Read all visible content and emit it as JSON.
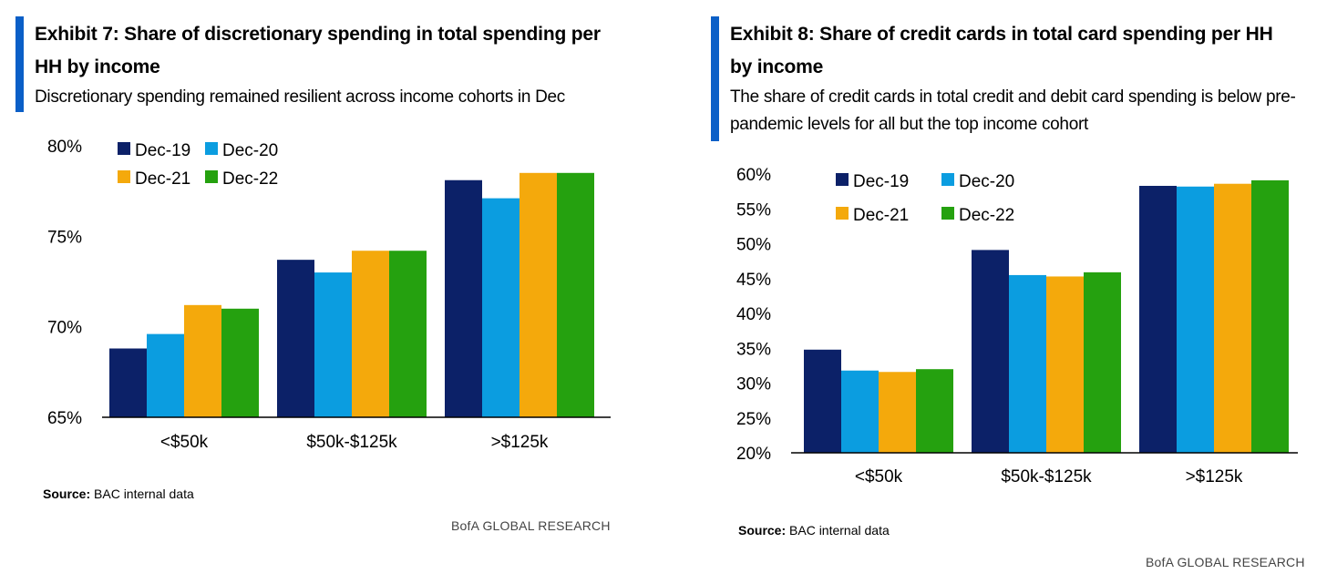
{
  "colors": {
    "accent": "#0a5fc7",
    "series": [
      "#0c2168",
      "#0b9de0",
      "#f4a90c",
      "#25a10f"
    ]
  },
  "brand": "BofA GLOBAL RESEARCH",
  "chart_data": [
    {
      "type": "bar",
      "title": "Exhibit 7: Share of discretionary spending in total spending per HH by income",
      "subtitle": "Discretionary spending remained resilient across income cohorts in Dec",
      "source_label": "Source:",
      "source_text": "BAC internal data",
      "categories": [
        "<$50k",
        "$50k-$125k",
        ">$125k"
      ],
      "series": [
        {
          "name": "Dec-19",
          "values": [
            68.8,
            73.7,
            78.1
          ]
        },
        {
          "name": "Dec-20",
          "values": [
            69.6,
            73.0,
            77.1
          ]
        },
        {
          "name": "Dec-21",
          "values": [
            71.2,
            74.2,
            78.5
          ]
        },
        {
          "name": "Dec-22",
          "values": [
            71.0,
            74.2,
            78.5
          ]
        }
      ],
      "yticks": [
        "80%",
        "75%",
        "70%",
        "65%"
      ],
      "ylim": [
        65,
        80
      ],
      "legend": "top-left",
      "grid": false
    },
    {
      "type": "bar",
      "title": "Exhibit 8: Share of credit cards in total card spending per HH by income",
      "subtitle": "The share of credit cards in total credit and debit card spending is below pre-pandemic levels for all but the top income cohort",
      "source_label": "Source:",
      "source_text": "BAC internal data",
      "categories": [
        "<$50k",
        "$50k-$125k",
        ">$125k"
      ],
      "series": [
        {
          "name": "Dec-19",
          "values": [
            34.8,
            49.1,
            58.3
          ]
        },
        {
          "name": "Dec-20",
          "values": [
            31.8,
            45.5,
            58.2
          ]
        },
        {
          "name": "Dec-21",
          "values": [
            31.6,
            45.3,
            58.6
          ]
        },
        {
          "name": "Dec-22",
          "values": [
            32.0,
            45.9,
            59.1
          ]
        }
      ],
      "yticks": [
        "60%",
        "55%",
        "50%",
        "45%",
        "40%",
        "35%",
        "30%",
        "25%",
        "20%"
      ],
      "ylim": [
        20,
        60
      ],
      "legend": "top-left",
      "grid": false
    }
  ]
}
